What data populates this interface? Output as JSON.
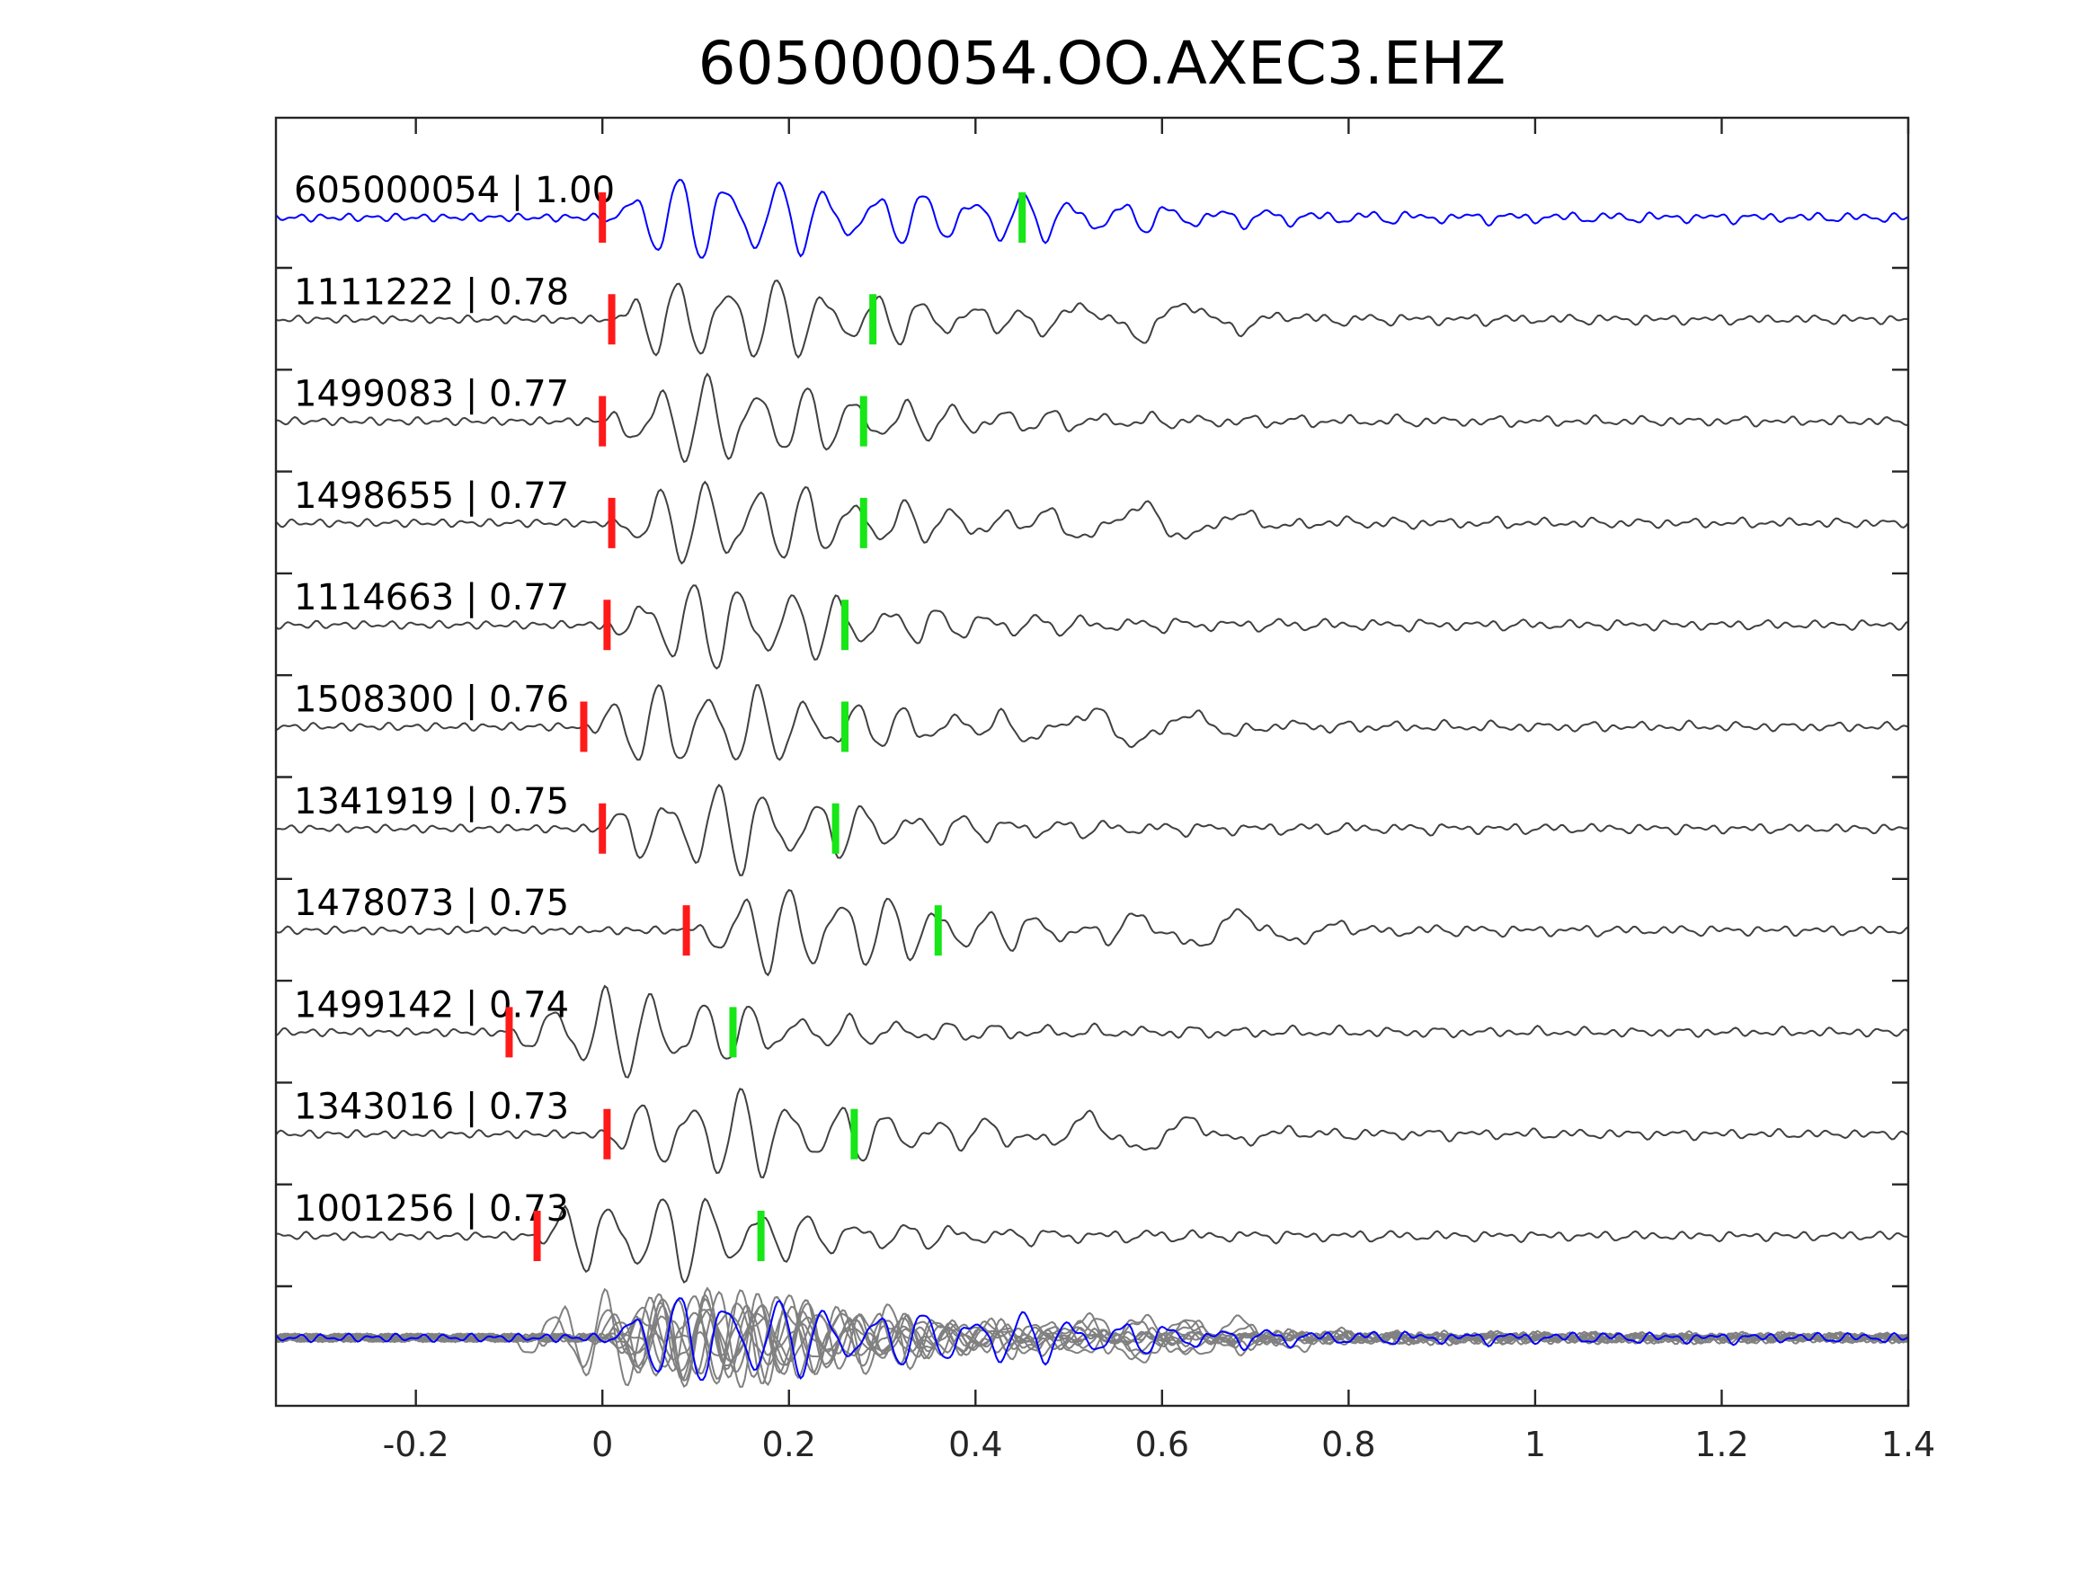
{
  "chart_data": {
    "type": "line",
    "title": "605000054.OO.AXEC3.EHZ",
    "xlabel": "",
    "ylabel": "",
    "xlim": [
      -0.35,
      1.4
    ],
    "xticks": [
      -0.2,
      0,
      0.2,
      0.4,
      0.6,
      0.8,
      1,
      1.2,
      1.4
    ],
    "xtick_labels": [
      "-0.2",
      "0",
      "0.2",
      "0.4",
      "0.6",
      "0.8",
      "1",
      "1.2",
      "1.4"
    ],
    "grid": false,
    "colors": {
      "reference": "#0000ff",
      "trace": "#404040",
      "stack": "#808080",
      "p_pick": "#ff1a1a",
      "s_pick": "#17e617"
    },
    "traces": [
      {
        "id": "605000054",
        "cc": "1.00",
        "label": "605000054 | 1.00",
        "p_pick": 0.0,
        "s_pick": 0.45,
        "reference": true
      },
      {
        "id": "1111222",
        "cc": "0.78",
        "label": "1111222 | 0.78",
        "p_pick": 0.01,
        "s_pick": 0.29
      },
      {
        "id": "1499083",
        "cc": "0.77",
        "label": "1499083 | 0.77",
        "p_pick": 0.0,
        "s_pick": 0.28
      },
      {
        "id": "1498655",
        "cc": "0.77",
        "label": "1498655 | 0.77",
        "p_pick": 0.01,
        "s_pick": 0.28
      },
      {
        "id": "1114663",
        "cc": "0.77",
        "label": "1114663 | 0.77",
        "p_pick": 0.005,
        "s_pick": 0.26
      },
      {
        "id": "1508300",
        "cc": "0.76",
        "label": "1508300 | 0.76",
        "p_pick": -0.02,
        "s_pick": 0.26
      },
      {
        "id": "1341919",
        "cc": "0.75",
        "label": "1341919 | 0.75",
        "p_pick": 0.0,
        "s_pick": 0.25
      },
      {
        "id": "1478073",
        "cc": "0.75",
        "label": "1478073 | 0.75",
        "p_pick": 0.09,
        "s_pick": 0.36
      },
      {
        "id": "1499142",
        "cc": "0.74",
        "label": "1499142 | 0.74",
        "p_pick": -0.1,
        "s_pick": 0.14
      },
      {
        "id": "1343016",
        "cc": "0.73",
        "label": "1343016 | 0.73",
        "p_pick": 0.005,
        "s_pick": 0.27
      },
      {
        "id": "1001256",
        "cc": "0.73",
        "label": "1001256 | 0.73",
        "p_pick": -0.07,
        "s_pick": 0.17
      }
    ]
  }
}
